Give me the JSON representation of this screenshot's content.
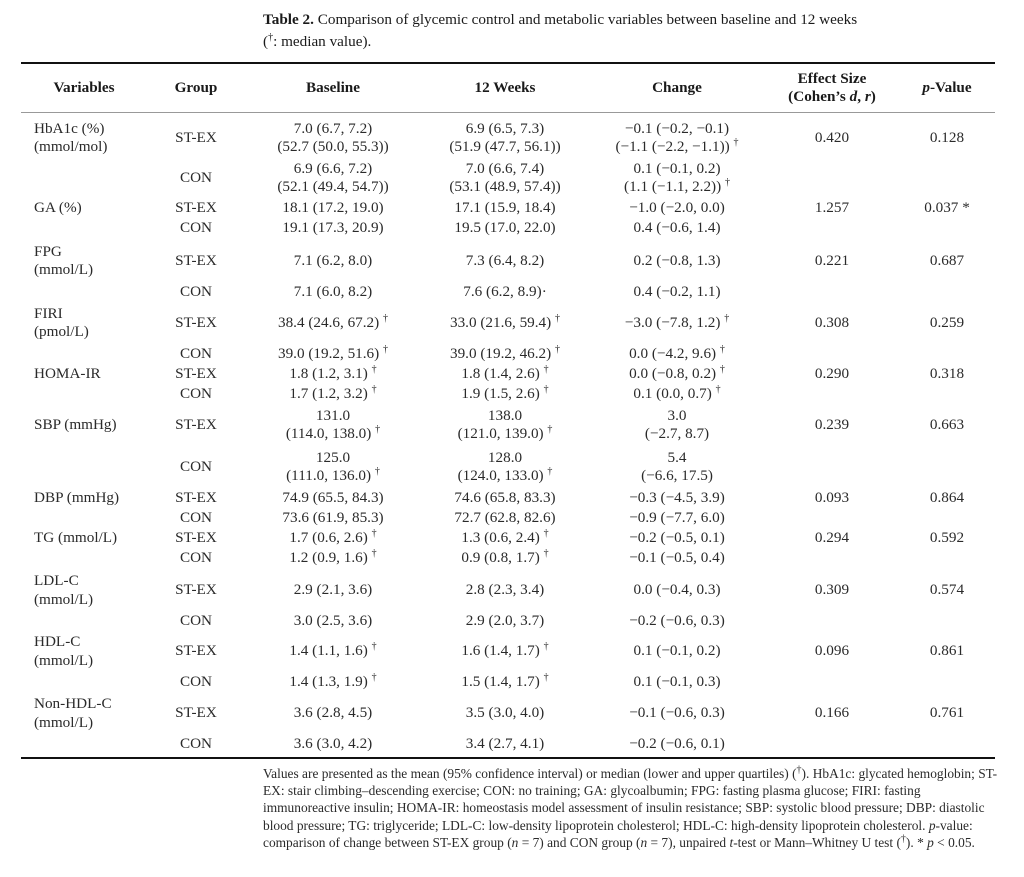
{
  "caption": {
    "label": "Table 2.",
    "text": "Comparison of glycemic control and metabolic variables between baseline and 12 weeks",
    "line2_prefix": "(",
    "dagger": "†",
    "line2_suffix": ": median value)."
  },
  "headers": {
    "variables": "Variables",
    "group": "Group",
    "baseline": "Baseline",
    "weeks12": "12 Weeks",
    "change": "Change",
    "effect_line1": "Effect Size",
    "effect_line2_a": "(Cohen’s ",
    "effect_d": "d",
    "effect_sep": ", ",
    "effect_r": "r",
    "effect_close": ")",
    "p_italic": "p",
    "p_rest": "-Value"
  },
  "dagger": "†",
  "rows": [
    {
      "var1": "HbA1c (%)",
      "var2": "(mmol/mol)",
      "group": "ST-EX",
      "baseline1": "7.0 (6.7, 7.2)",
      "baseline2": "(52.7 (50.0, 55.3))",
      "weeks1": "6.9 (6.5, 7.3)",
      "weeks2": "(51.9 (47.7, 56.1))",
      "change1": "−0.1 (−0.2, −0.1)",
      "change2": "(−1.1 (−2.2, −1.1))",
      "change2_dag": true,
      "effect": "0.420",
      "p": "0.128"
    },
    {
      "group": "CON",
      "baseline1": "6.9 (6.6, 7.2)",
      "baseline2": "(52.1 (49.4, 54.7))",
      "weeks1": "7.0 (6.6, 7.4)",
      "weeks2": "(53.1 (48.9, 57.4))",
      "change1": "0.1 (−0.1, 0.2)",
      "change2": "(1.1 (−1.1, 2.2))",
      "change2_dag": true
    },
    {
      "var1": "GA (%)",
      "group": "ST-EX",
      "baseline": "18.1 (17.2, 19.0)",
      "weeks": "17.1 (15.9, 18.4)",
      "change": "−1.0 (−2.0, 0.0)",
      "effect": "1.257",
      "p": "0.037 *"
    },
    {
      "group": "CON",
      "baseline": "19.1 (17.3, 20.9)",
      "weeks": "19.5 (17.0, 22.0)",
      "change": "0.4 (−0.6, 1.4)"
    },
    {
      "var1": "FPG",
      "var2": "(mmol/L)",
      "group": "ST-EX",
      "baseline": "7.1 (6.2, 8.0)",
      "weeks": "7.3 (6.4, 8.2)",
      "change": "0.2 (−0.8, 1.3)",
      "effect": "0.221",
      "p": "0.687"
    },
    {
      "group": "CON",
      "baseline": "7.1 (6.0, 8.2)",
      "weeks": "7.6 (6.2, 8.9)",
      "weeks_mark": "·",
      "change": "0.4 (−0.2, 1.1)"
    },
    {
      "var1": "FIRI",
      "var2": "(pmol/L)",
      "group": "ST-EX",
      "baseline": "38.4 (24.6, 67.2)",
      "weeks": "33.0 (21.6, 59.4)",
      "change": "−3.0 (−7.8, 1.2)",
      "effect": "0.308",
      "p": "0.259"
    },
    {
      "group": "CON",
      "baseline": "39.0 (19.2, 51.6)",
      "weeks": "39.0 (19.2, 46.2)",
      "change": "0.0 (−4.2, 9.6)"
    },
    {
      "var1": "HOMA-IR",
      "group": "ST-EX",
      "baseline": "1.8 (1.2, 3.1)",
      "weeks": "1.8 (1.4, 2.6)",
      "change": "0.0 (−0.8, 0.2)",
      "effect": "0.290",
      "p": "0.318"
    },
    {
      "group": "CON",
      "baseline": "1.7 (1.2, 3.2)",
      "weeks": "1.9 (1.5, 2.6)",
      "change": "0.1 (0.0, 0.7)"
    },
    {
      "var1": "SBP (mmHg)",
      "group": "ST-EX",
      "baseline1": "131.0",
      "baseline2": "(114.0, 138.0)",
      "weeks1": "138.0",
      "weeks2": "(121.0, 139.0)",
      "change1": "3.0",
      "change2": "(−2.7, 8.7)",
      "effect": "0.239",
      "p": "0.663"
    },
    {
      "group": "CON",
      "baseline1": "125.0",
      "baseline2": "(111.0, 136.0)",
      "weeks1": "128.0",
      "weeks2": "(124.0, 133.0)",
      "change1": "5.4",
      "change2": "(−6.6, 17.5)"
    },
    {
      "var1": "DBP (mmHg)",
      "group": "ST-EX",
      "baseline": "74.9 (65.5, 84.3)",
      "weeks": "74.6 (65.8, 83.3)",
      "change": "−0.3 (−4.5, 3.9)",
      "effect": "0.093",
      "p": "0.864"
    },
    {
      "group": "CON",
      "baseline": "73.6 (61.9, 85.3)",
      "weeks": "72.7 (62.8, 82.6)",
      "change": "−0.9 (−7.7, 6.0)"
    },
    {
      "var1": "TG (mmol/L)",
      "group": "ST-EX",
      "baseline": "1.7 (0.6, 2.6)",
      "weeks": "1.3 (0.6, 2.4)",
      "change": "−0.2 (−0.5, 0.1)",
      "effect": "0.294",
      "p": "0.592"
    },
    {
      "group": "CON",
      "baseline": "1.2 (0.9, 1.6)",
      "weeks": "0.9 (0.8, 1.7)",
      "change": "−0.1 (−0.5, 0.4)"
    },
    {
      "var1": "LDL-C",
      "var2": "(mmol/L)",
      "group": "ST-EX",
      "baseline": "2.9 (2.1, 3.6)",
      "weeks": "2.8 (2.3, 3.4)",
      "change": "0.0 (−0.4, 0.3)",
      "effect": "0.309",
      "p": "0.574"
    },
    {
      "group": "CON",
      "baseline": "3.0 (2.5, 3.6)",
      "weeks": "2.9 (2.0, 3.7)",
      "change": "−0.2 (−0.6, 0.3)"
    },
    {
      "var1": "HDL-C",
      "var2": "(mmol/L)",
      "group": "ST-EX",
      "baseline": "1.4 (1.1, 1.6)",
      "weeks": "1.6 (1.4, 1.7)",
      "change": "0.1 (−0.1, 0.2)",
      "effect": "0.096",
      "p": "0.861"
    },
    {
      "group": "CON",
      "baseline": "1.4 (1.3, 1.9)",
      "weeks": "1.5 (1.4, 1.7)",
      "change": "0.1 (−0.1, 0.3)"
    },
    {
      "var1": "Non-HDL-C",
      "var2": "(mmol/L)",
      "group": "ST-EX",
      "baseline": "3.6 (2.8, 4.5)",
      "weeks": "3.5 (3.0, 4.0)",
      "change": "−0.1 (−0.6, 0.3)",
      "effect": "0.166",
      "p": "0.761"
    },
    {
      "group": "CON",
      "baseline": "3.6 (3.0, 4.2)",
      "weeks": "3.4 (2.7, 4.1)",
      "change": "−0.2 (−0.6, 0.1)"
    }
  ],
  "footnote": {
    "p1": "Values are presented as the mean (95% confidence interval) or median (lower and upper quartiles) (",
    "p2": "). HbA1c: glycated hemoglobin; ST-EX: stair climbing–descending exercise; CON: no training; GA: glycoalbumin; FPG: fasting plasma glucose; FIRI: fasting immunoreactive insulin; HOMA-IR: homeostasis model assessment of insulin resistance; SBP: systolic blood pressure; DBP: diastolic blood pressure; TG: triglyceride; LDL-C: low-density lipoprotein cholesterol; HDL-C: high-density lipoprotein cholesterol. ",
    "p_italic": "p",
    "p3": "-value: comparison of change between ST-EX group (",
    "n1": "n",
    "p4": " = 7) and CON group (",
    "n2": "n",
    "p5": " = 7), unpaired ",
    "t": "t",
    "p6": "-test or Mann–Whitney U test (",
    "p7": "). * ",
    "p8": "p",
    "p9": " < 0.05."
  }
}
